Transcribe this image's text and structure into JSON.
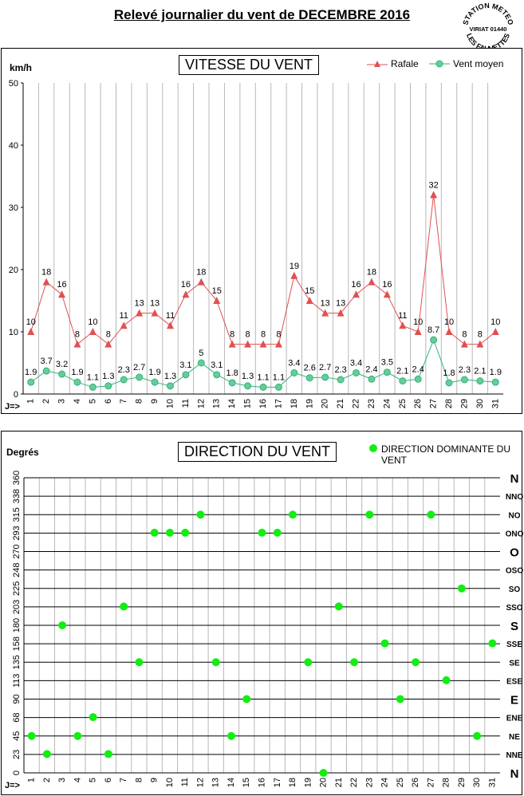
{
  "page": {
    "title": "Relevé journalier du vent de DECEMBRE 2016",
    "stamp": {
      "top": "STATION METEO",
      "middle": "VIRIAT 01440",
      "bottom": "LES FAUVETTES"
    }
  },
  "colors": {
    "gust": "#e05050",
    "avg": "#33b27a",
    "dir_point": "#11ee11"
  },
  "chart_data": [
    {
      "type": "line",
      "title": "VITESSE DU VENT",
      "ylabel": "km/h",
      "x_prefix": "J=>",
      "ylim": [
        0,
        50
      ],
      "yticks": [
        0,
        10,
        20,
        30,
        40,
        50
      ],
      "grid": "vertical",
      "legend": "top-right",
      "categories": [
        "1",
        "2",
        "3",
        "4",
        "5",
        "6",
        "7",
        "8",
        "9",
        "10",
        "11",
        "12",
        "13",
        "14",
        "15",
        "16",
        "17",
        "18",
        "19",
        "20",
        "21",
        "22",
        "23",
        "24",
        "25",
        "26",
        "27",
        "28",
        "29",
        "30",
        "31"
      ],
      "series": [
        {
          "name": "Rafale",
          "marker": "triangle",
          "values": [
            10,
            18,
            16,
            8,
            10,
            8,
            11,
            13,
            13,
            11,
            16,
            18,
            15,
            8,
            8,
            8,
            8,
            19,
            15,
            13,
            13,
            16,
            18,
            16,
            11,
            10,
            32,
            10,
            8,
            8,
            10
          ]
        },
        {
          "name": "Vent moyen",
          "marker": "circle",
          "values": [
            1.9,
            3.7,
            3.2,
            1.9,
            1.1,
            1.3,
            2.3,
            2.7,
            1.9,
            1.3,
            3.1,
            5,
            3.1,
            1.8,
            1.3,
            1.1,
            1.1,
            3.4,
            2.6,
            2.7,
            2.3,
            3.4,
            2.4,
            3.5,
            2.1,
            2.4,
            8.7,
            1.8,
            2.3,
            2.1,
            1.9
          ]
        }
      ]
    },
    {
      "type": "scatter",
      "title": "DIRECTION DU VENT",
      "ylabel": "Degrés",
      "x_prefix": "J=>",
      "ylim": [
        0,
        360
      ],
      "yticks": [
        "0",
        "23",
        "45",
        "68",
        "90",
        "113",
        "135",
        "158",
        "180",
        "203",
        "225",
        "248",
        "270",
        "293",
        "315",
        "338",
        "360"
      ],
      "compass": [
        "N",
        "NNE",
        "NE",
        "ENE",
        "E",
        "ESE",
        "SE",
        "SSE",
        "S",
        "SSO",
        "SO",
        "OSO",
        "O",
        "ONO",
        "NO",
        "NNO",
        "N"
      ],
      "grid": "both",
      "legend": "top-right",
      "categories": [
        "1",
        "2",
        "3",
        "4",
        "5",
        "6",
        "7",
        "8",
        "9",
        "10",
        "11",
        "12",
        "13",
        "14",
        "15",
        "16",
        "17",
        "18",
        "19",
        "20",
        "21",
        "22",
        "23",
        "24",
        "25",
        "26",
        "27",
        "28",
        "29",
        "30",
        "31"
      ],
      "series": [
        {
          "name": "DIRECTION DOMINANTE DU VENT",
          "marker": "circle",
          "values": [
            45,
            23,
            180,
            45,
            68,
            23,
            203,
            135,
            293,
            293,
            293,
            315,
            135,
            45,
            90,
            293,
            293,
            315,
            135,
            0,
            203,
            135,
            315,
            158,
            90,
            135,
            315,
            113,
            225,
            45,
            158
          ]
        }
      ]
    }
  ]
}
